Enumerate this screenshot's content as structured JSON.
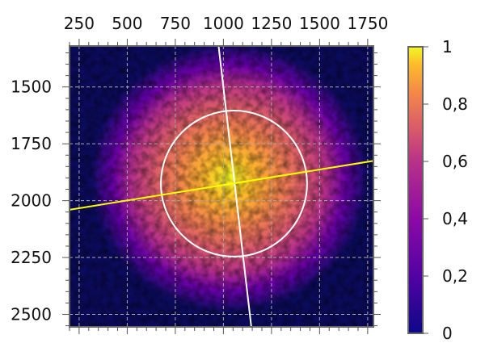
{
  "chart_data": {
    "type": "heatmap",
    "title": "",
    "xlabel": "",
    "ylabel": "",
    "xlim": [
      200,
      1780
    ],
    "ylim": [
      2555,
      1320
    ],
    "x_ticks": [
      250,
      500,
      750,
      1000,
      1250,
      1500,
      1750
    ],
    "x_tick_labels": [
      "250",
      "500",
      "750",
      "1000",
      "1250",
      "1500",
      "1750"
    ],
    "x_axis_position": "top",
    "y_ticks": [
      1500,
      1750,
      2000,
      2250,
      2500
    ],
    "y_tick_labels": [
      "1500",
      "1750",
      "2000",
      "2250",
      "2500"
    ],
    "grid": true,
    "grid_style": "dashed",
    "colorbar": {
      "min": 0,
      "max": 1,
      "ticks": [
        0,
        0.2,
        0.4,
        0.6,
        0.8,
        1
      ],
      "tick_labels": [
        "0",
        "0,2",
        "0,4",
        "0,6",
        "0,8",
        "1"
      ],
      "colormap": "plasma",
      "placement": "right"
    },
    "beam": {
      "center_x": 1030,
      "center_y": 1900,
      "peak_intensity": 1,
      "background_intensity": 0.05
    },
    "overlays": [
      {
        "name": "circle",
        "color": "#ffffff",
        "center": [
          1055,
          1925
        ],
        "radius": 380
      },
      {
        "name": "major-axis",
        "color": "#ffffff",
        "from": [
          975,
          1320
        ],
        "to": [
          1145,
          2555
        ]
      },
      {
        "name": "minor-axis",
        "color": "#ffff00",
        "from": [
          200,
          2040
        ],
        "to": [
          1780,
          1825
        ]
      }
    ],
    "colors": {
      "background": "#0b0b5c",
      "frame": "#666666",
      "grid": "#aaaaaa"
    }
  }
}
